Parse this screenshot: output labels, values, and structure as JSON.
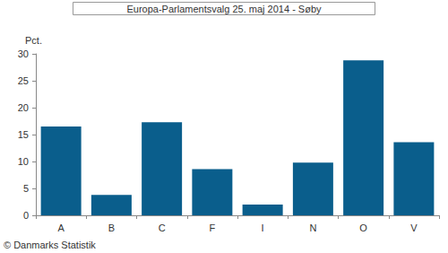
{
  "chart_data": {
    "type": "bar",
    "title": "Europa-Parlamentsvalg 25. maj 2014 - Søby",
    "y_label": "Pct.",
    "categories": [
      "A",
      "B",
      "C",
      "F",
      "I",
      "N",
      "O",
      "V"
    ],
    "values": [
      16.5,
      3.8,
      17.3,
      8.6,
      2.0,
      9.8,
      28.8,
      13.6
    ],
    "color": "#0a5e8c",
    "ylim": [
      0,
      30
    ],
    "yticks": [
      0,
      5,
      10,
      15,
      20,
      25,
      30
    ],
    "grid": false,
    "annotations": [
      "© Danmarks Statistik"
    ]
  }
}
